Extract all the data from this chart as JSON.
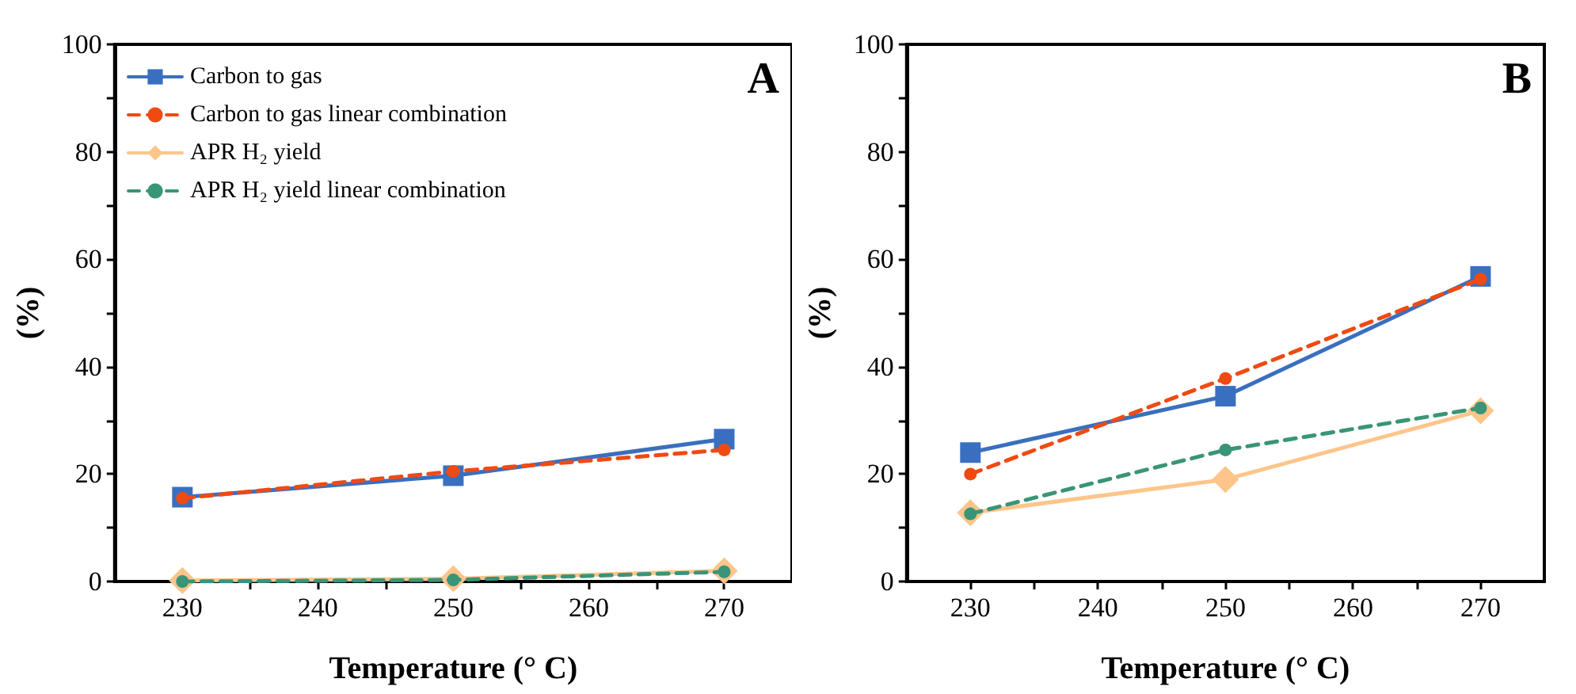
{
  "chart_data": [
    {
      "type": "line",
      "xlabel": "Temperature (° C)",
      "ylabel": "(%)",
      "annotations": [
        "A"
      ],
      "x": [
        230,
        250,
        270
      ],
      "xlim": [
        225,
        275
      ],
      "xticks": [
        230,
        {
          "value": 235,
          "label": null
        },
        240,
        {
          "value": 245,
          "label": null
        },
        250,
        {
          "value": 255,
          "label": null
        },
        260,
        {
          "value": 265,
          "label": null
        },
        270
      ],
      "ylim": [
        0,
        100
      ],
      "yticks": [
        0,
        {
          "value": 10,
          "label": null
        },
        20,
        {
          "value": 30,
          "label": null
        },
        40,
        {
          "value": 50,
          "label": null
        },
        60,
        {
          "value": 70,
          "label": null
        },
        80,
        {
          "value": 90,
          "label": null
        },
        100
      ],
      "grid": false,
      "legend": "top left",
      "series": [
        {
          "name": "Carbon to gas",
          "color": "#3a6fbf",
          "marker": "square",
          "line_style": "solid",
          "values": [
            15.7,
            19.7,
            26.5
          ]
        },
        {
          "name": "Carbon to gas linear combination",
          "color": "#f04a12",
          "marker": "circle",
          "line_style": "dashed",
          "values": [
            15.5,
            20.5,
            24.5
          ]
        },
        {
          "name": "APR H₂ yield",
          "color": "#fdc58a",
          "marker": "diamond",
          "line_style": "solid",
          "values": [
            0.2,
            0.5,
            2
          ]
        },
        {
          "name": "APR H₂ yield linear combination",
          "color": "#3a9478",
          "marker": "circle",
          "line_style": "dashed",
          "values": [
            0,
            0.3,
            1.8
          ]
        }
      ]
    },
    {
      "type": "line",
      "xlabel": "Temperature (° C)",
      "ylabel": "(%)",
      "annotations": [
        "B"
      ],
      "x": [
        230,
        250,
        270
      ],
      "xlim": [
        225,
        275
      ],
      "xticks": [
        230,
        {
          "value": 235,
          "label": null
        },
        240,
        {
          "value": 245,
          "label": null
        },
        250,
        {
          "value": 255,
          "label": null
        },
        260,
        {
          "value": 265,
          "label": null
        },
        270
      ],
      "ylim": [
        0,
        100
      ],
      "yticks": [
        0,
        {
          "value": 10,
          "label": null
        },
        20,
        {
          "value": 30,
          "label": null
        },
        40,
        {
          "value": 50,
          "label": null
        },
        60,
        {
          "value": 70,
          "label": null
        },
        80,
        {
          "value": 90,
          "label": null
        },
        100
      ],
      "grid": false,
      "series": [
        {
          "color": "#3a6fbf",
          "marker": "square",
          "line_style": "solid",
          "values": [
            24,
            34.5,
            56.8
          ]
        },
        {
          "color": "#f04a12",
          "marker": "circle",
          "line_style": "dashed",
          "values": [
            20,
            37.8,
            56.3
          ]
        },
        {
          "color": "#fdc58a",
          "marker": "diamond",
          "line_style": "solid",
          "values": [
            12.8,
            19,
            31.8
          ]
        },
        {
          "color": "#3a9478",
          "marker": "circle",
          "line_style": "dashed",
          "values": [
            12.6,
            24.5,
            32.3
          ]
        }
      ]
    }
  ]
}
